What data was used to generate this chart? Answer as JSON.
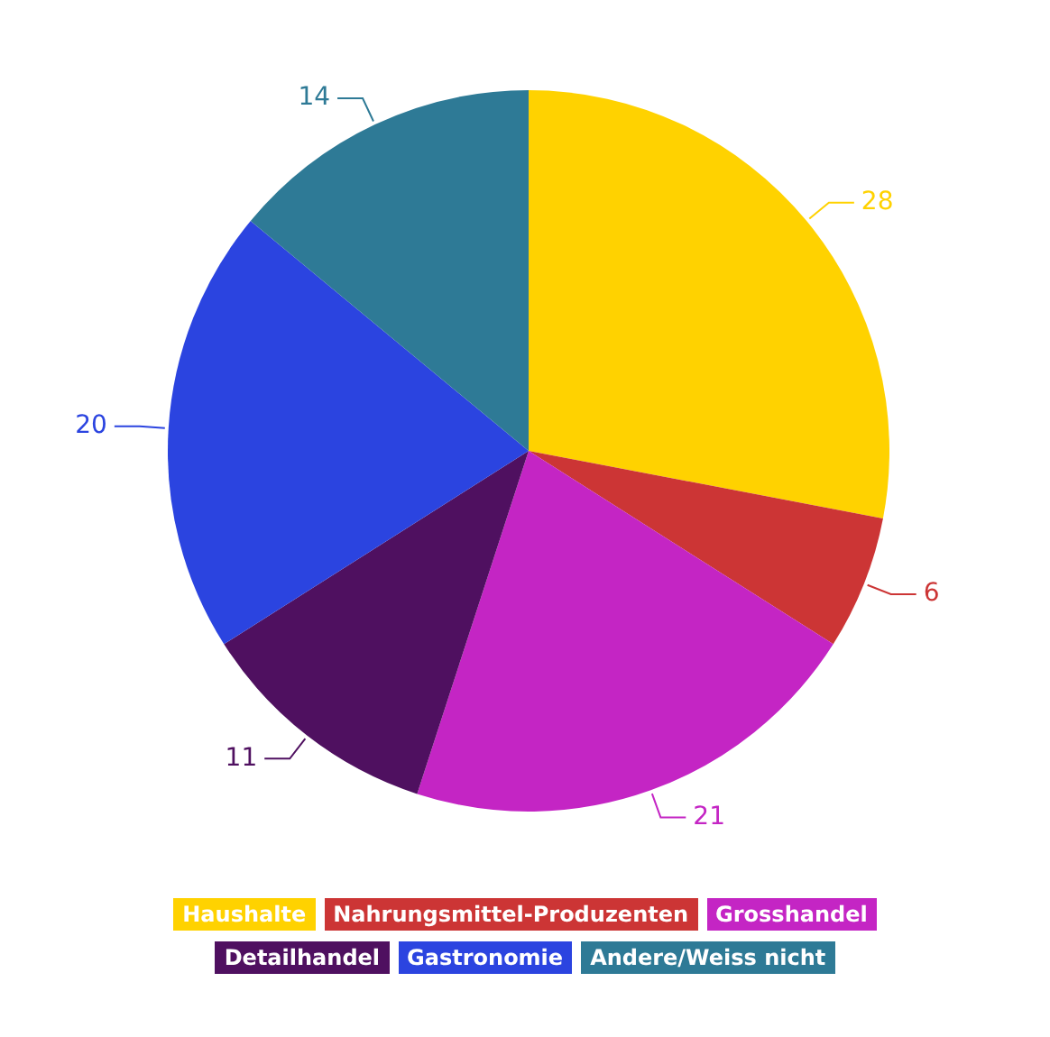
{
  "chart_data": {
    "type": "pie",
    "categories": [
      "Haushalte",
      "Nahrungsmittel-Produzenten",
      "Grosshandel",
      "Detailhandel",
      "Gastronomie",
      "Andere/Weiss nicht"
    ],
    "values": [
      28,
      6,
      21,
      11,
      20,
      14
    ],
    "colors": [
      "#ffd200",
      "#cc3535",
      "#c425c4",
      "#4f1060",
      "#2b44e0",
      "#2e7a96"
    ],
    "data_labels": true,
    "legend": "bottom"
  }
}
